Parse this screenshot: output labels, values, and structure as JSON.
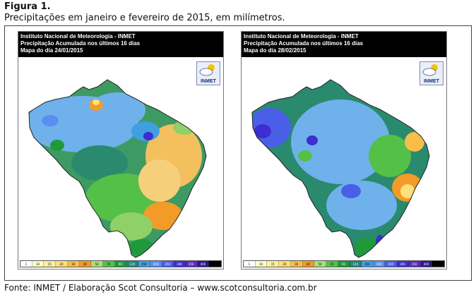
{
  "figure": {
    "title": "Figura 1.",
    "subtitle": "Precipitações em janeiro e fevereiro de 2015, em milímetros.",
    "source": "Fonte: INMET / Elaboração  Scot Consultoria – www.scotconsultoria.com.br"
  },
  "panels": [
    {
      "line1": "Instituto Nacional de Meteorologia - INMET",
      "line2": "Precipitação Acumulada nos últimos 16 dias",
      "line3": "Mapa do dia 24/01/2015",
      "logo_text": "INMET"
    },
    {
      "line1": "Instituto Nacional de Meteorologia - INMET",
      "line2": "Precipitação Acumulada nos últimos 16 dias",
      "line3": "Mapa do dia 28/02/2015",
      "logo_text": "INMET"
    }
  ],
  "legend": {
    "labels": [
      "1",
      "10",
      "15",
      "20",
      "30",
      "40",
      "50",
      "70",
      "90",
      "120",
      "150",
      "200",
      "250",
      "300",
      "350",
      "400",
      ""
    ],
    "colors": [
      "#ffffff",
      "#ffffcc",
      "#fff0a0",
      "#fde07a",
      "#f7be49",
      "#f29b28",
      "#a8e07a",
      "#55c048",
      "#1f9a3a",
      "#23857a",
      "#3f9fe0",
      "#5a8ef0",
      "#4a5fe8",
      "#3c2ed0",
      "#5a2ab8",
      "#2a1b8a",
      "#000000"
    ]
  }
}
